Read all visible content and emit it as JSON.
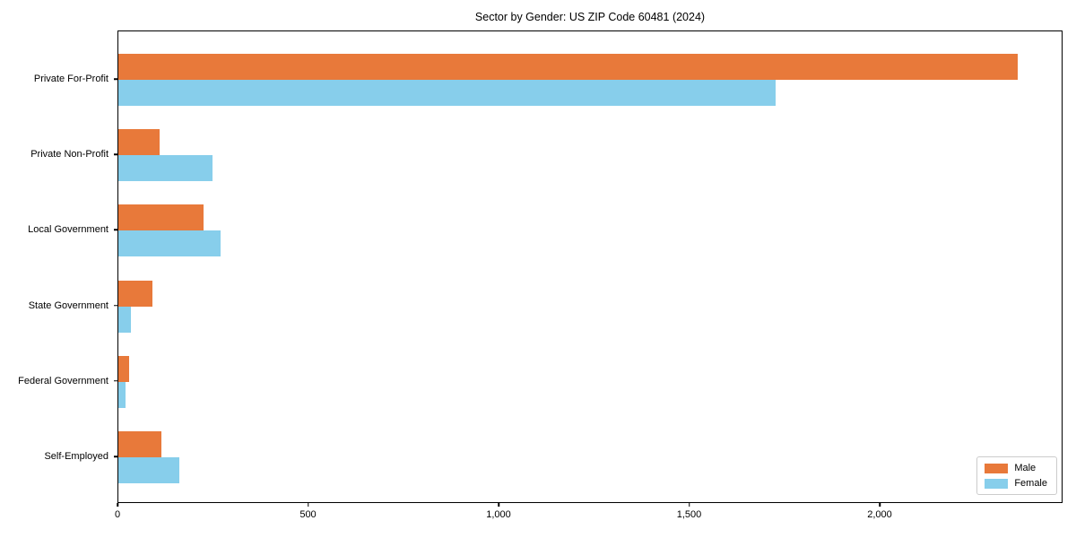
{
  "chart_data": {
    "type": "bar",
    "orientation": "horizontal",
    "title": "Sector by Gender: US ZIP Code 60481 (2024)",
    "xlabel": "",
    "ylabel": "",
    "categories": [
      "Private For-Profit",
      "Private Non-Profit",
      "Local Government",
      "State Government",
      "Federal Government",
      "Self-Employed"
    ],
    "series": [
      {
        "name": "Male",
        "color": "#E8793A",
        "values": [
          2360,
          108,
          224,
          90,
          27,
          112
        ]
      },
      {
        "name": "Female",
        "color": "#87CEEB",
        "values": [
          1725,
          247,
          268,
          33,
          18,
          161
        ]
      }
    ],
    "xlim": [
      0,
      2480
    ],
    "x_ticks": [
      0,
      500,
      1000,
      1500,
      2000
    ],
    "x_tick_labels": [
      "0",
      "500",
      "1,000",
      "1,500",
      "2,000"
    ],
    "legend_position": "lower right",
    "grid": false,
    "background_color": "#ffffff",
    "spine_color": "#000000"
  }
}
